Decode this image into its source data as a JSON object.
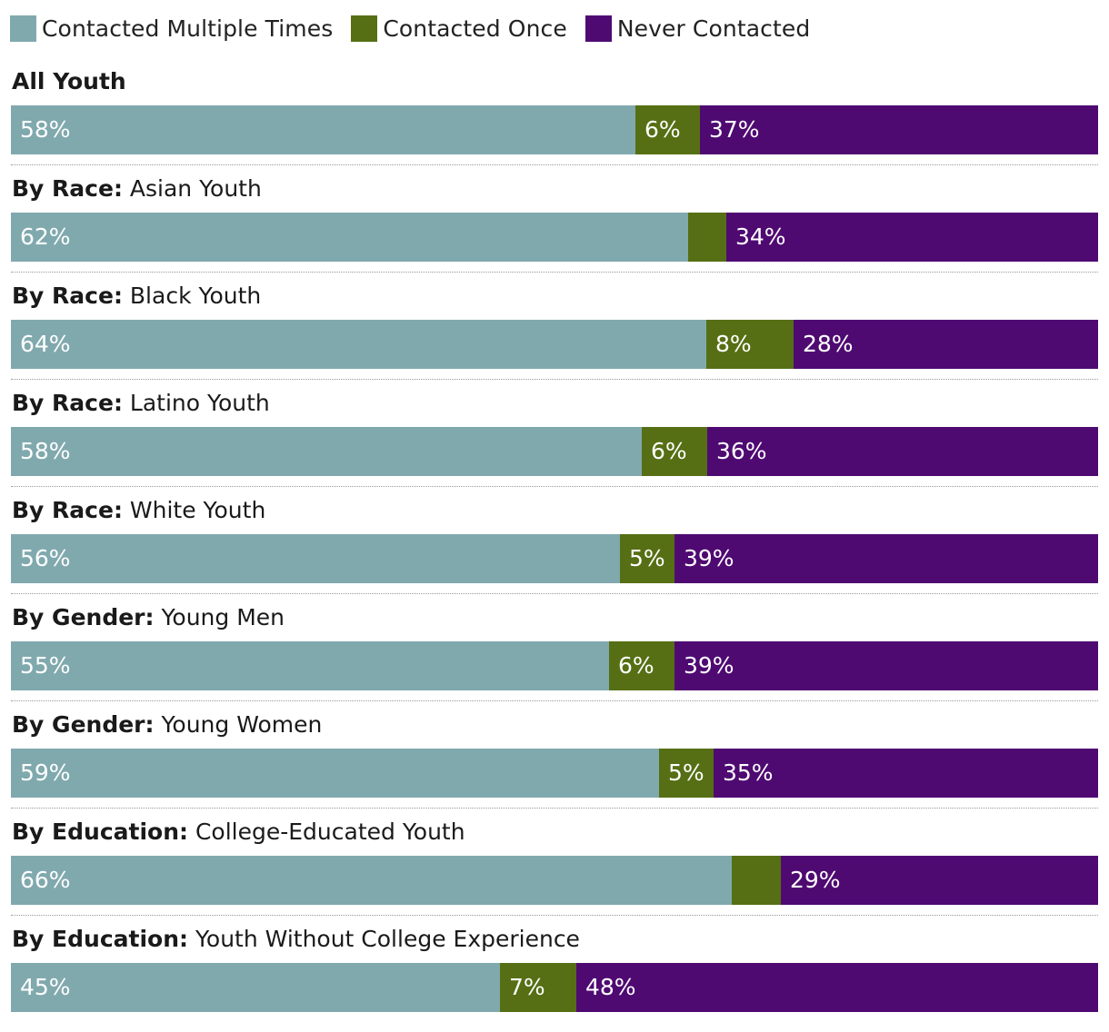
{
  "colors": {
    "multiple": "#80a9ae",
    "once": "#566f14",
    "never": "#4f0a72"
  },
  "chart_data": {
    "type": "bar",
    "orientation": "horizontal",
    "stacked": true,
    "legend": [
      {
        "key": "multiple",
        "label": "Contacted Multiple Times"
      },
      {
        "key": "once",
        "label": "Contacted Once"
      },
      {
        "key": "never",
        "label": "Never Contacted"
      }
    ],
    "rows": [
      {
        "prefix": "All Youth",
        "label": "",
        "values": {
          "multiple": 58,
          "once": 6,
          "never": 37
        },
        "labels": {
          "multiple": "58%",
          "once": "6%",
          "never": "37%"
        }
      },
      {
        "prefix": "By Race:",
        "label": "Asian Youth",
        "values": {
          "multiple": 62,
          "once": 3.5,
          "never": 34
        },
        "labels": {
          "multiple": "62%",
          "once": "",
          "never": "34%"
        }
      },
      {
        "prefix": "By Race:",
        "label": "Black Youth",
        "values": {
          "multiple": 64,
          "once": 8,
          "never": 28
        },
        "labels": {
          "multiple": "64%",
          "once": "8%",
          "never": "28%"
        }
      },
      {
        "prefix": "By Race:",
        "label": "Latino Youth",
        "values": {
          "multiple": 58,
          "once": 6,
          "never": 36
        },
        "labels": {
          "multiple": "58%",
          "once": "6%",
          "never": "36%"
        }
      },
      {
        "prefix": "By Race:",
        "label": "White Youth",
        "values": {
          "multiple": 56,
          "once": 5,
          "never": 39
        },
        "labels": {
          "multiple": "56%",
          "once": "5%",
          "never": "39%"
        }
      },
      {
        "prefix": "By Gender:",
        "label": "Young Men",
        "values": {
          "multiple": 55,
          "once": 6,
          "never": 39
        },
        "labels": {
          "multiple": "55%",
          "once": "6%",
          "never": "39%"
        }
      },
      {
        "prefix": "By Gender:",
        "label": "Young Women",
        "values": {
          "multiple": 59,
          "once": 5,
          "never": 35
        },
        "labels": {
          "multiple": "59%",
          "once": "5%",
          "never": "35%"
        }
      },
      {
        "prefix": "By Education:",
        "label": "College-Educated Youth",
        "values": {
          "multiple": 66,
          "once": 4.5,
          "never": 29
        },
        "labels": {
          "multiple": "66%",
          "once": "",
          "never": "29%"
        }
      },
      {
        "prefix": "By Education:",
        "label": "Youth Without College Experience",
        "values": {
          "multiple": 45,
          "once": 7,
          "never": 48
        },
        "labels": {
          "multiple": "45%",
          "once": "7%",
          "never": "48%"
        }
      }
    ]
  }
}
